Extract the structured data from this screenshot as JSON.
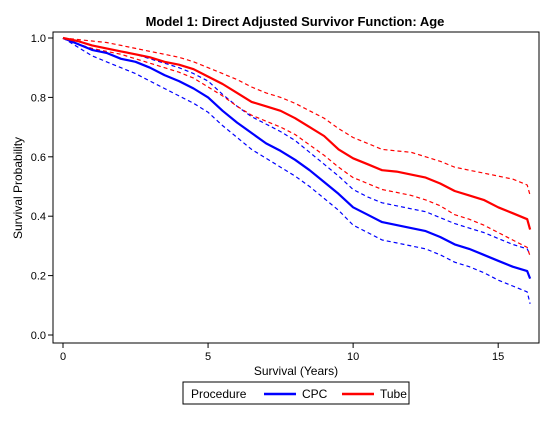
{
  "chart_data": {
    "type": "line",
    "title": "Model 1: Direct Adjusted Survivor Function: Age",
    "xlabel": "Survival (Years)",
    "ylabel": "Survival Probability",
    "xlim": [
      0,
      16.2
    ],
    "ylim": [
      0,
      1.0
    ],
    "xticks": [
      0,
      5,
      10,
      15
    ],
    "yticks": [
      0.0,
      0.2,
      0.4,
      0.6,
      0.8,
      1.0
    ],
    "xtick_labels": [
      "0",
      "5",
      "10",
      "15"
    ],
    "ytick_labels": [
      "0.0",
      "0.2",
      "0.4",
      "0.6",
      "0.8",
      "1.0"
    ],
    "grid": false,
    "legend": {
      "position": "bottom-center",
      "title": "Procedure",
      "entries": [
        "CPC",
        "Tube"
      ]
    },
    "series": [
      {
        "name": "CPC",
        "color": "#0000ff",
        "x": [
          0,
          0.5,
          1,
          1.5,
          2,
          2.5,
          3,
          3.5,
          4,
          4.5,
          5,
          5.5,
          6,
          6.5,
          7,
          7.5,
          8,
          8.5,
          9,
          9.5,
          10,
          10.5,
          11,
          11.5,
          12,
          12.5,
          13,
          13.5,
          14,
          14.5,
          15,
          15.5,
          16,
          16.1
        ],
        "y": [
          1.0,
          0.98,
          0.96,
          0.95,
          0.93,
          0.92,
          0.9,
          0.875,
          0.855,
          0.83,
          0.8,
          0.755,
          0.715,
          0.68,
          0.645,
          0.62,
          0.59,
          0.555,
          0.515,
          0.475,
          0.43,
          0.405,
          0.38,
          0.37,
          0.36,
          0.35,
          0.33,
          0.305,
          0.29,
          0.27,
          0.25,
          0.23,
          0.215,
          0.19
        ]
      },
      {
        "name": "Tube",
        "color": "#ff0000",
        "x": [
          0,
          0.5,
          1,
          1.5,
          2,
          2.5,
          3,
          3.5,
          4,
          4.5,
          5,
          5.5,
          6,
          6.5,
          7,
          7.5,
          8,
          8.5,
          9,
          9.5,
          10,
          10.5,
          11,
          11.5,
          12,
          12.5,
          13,
          13.5,
          14,
          14.5,
          15,
          15.5,
          16,
          16.1
        ],
        "y": [
          1.0,
          0.99,
          0.975,
          0.965,
          0.955,
          0.945,
          0.935,
          0.92,
          0.91,
          0.895,
          0.87,
          0.845,
          0.815,
          0.785,
          0.77,
          0.755,
          0.73,
          0.7,
          0.67,
          0.625,
          0.595,
          0.575,
          0.555,
          0.55,
          0.54,
          0.53,
          0.51,
          0.485,
          0.47,
          0.455,
          0.43,
          0.41,
          0.39,
          0.355
        ]
      },
      {
        "name": "",
        "color": "#0000ff",
        "dashed": true,
        "x": [
          0,
          0.5,
          1,
          1.5,
          2,
          2.5,
          3,
          3.5,
          4,
          4.5,
          5,
          5.5,
          6,
          6.5,
          7,
          7.5,
          8,
          8.5,
          9,
          9.5,
          10,
          10.5,
          11,
          11.5,
          12,
          12.5,
          13,
          13.5,
          14,
          14.5,
          15,
          15.5,
          16,
          16.1
        ],
        "y": [
          1.0,
          0.97,
          0.94,
          0.92,
          0.9,
          0.88,
          0.855,
          0.83,
          0.805,
          0.78,
          0.75,
          0.705,
          0.665,
          0.625,
          0.595,
          0.565,
          0.535,
          0.5,
          0.46,
          0.42,
          0.37,
          0.345,
          0.32,
          0.31,
          0.3,
          0.29,
          0.27,
          0.245,
          0.23,
          0.21,
          0.185,
          0.165,
          0.145,
          0.105
        ]
      },
      {
        "name": "",
        "color": "#0000ff",
        "dashed": true,
        "x": [
          0,
          0.5,
          1,
          1.5,
          2,
          2.5,
          3,
          3.5,
          4,
          4.5,
          5,
          5.5,
          6,
          6.5,
          7,
          7.5,
          8,
          8.5,
          9,
          9.5,
          10,
          10.5,
          11,
          11.5,
          12,
          12.5,
          13,
          13.5,
          14,
          14.5,
          15,
          15.5,
          16,
          16.1
        ],
        "y": [
          1.0,
          0.99,
          0.975,
          0.965,
          0.955,
          0.945,
          0.93,
          0.915,
          0.9,
          0.88,
          0.855,
          0.81,
          0.77,
          0.735,
          0.71,
          0.685,
          0.655,
          0.615,
          0.575,
          0.535,
          0.49,
          0.465,
          0.445,
          0.435,
          0.425,
          0.415,
          0.395,
          0.375,
          0.36,
          0.345,
          0.325,
          0.305,
          0.29,
          0.27
        ]
      },
      {
        "name": "",
        "color": "#ff0000",
        "dashed": true,
        "x": [
          0,
          0.5,
          1,
          1.5,
          2,
          2.5,
          3,
          3.5,
          4,
          4.5,
          5,
          5.5,
          6,
          6.5,
          7,
          7.5,
          8,
          8.5,
          9,
          9.5,
          10,
          10.5,
          11,
          11.5,
          12,
          12.5,
          13,
          13.5,
          14,
          14.5,
          15,
          15.5,
          16,
          16.1
        ],
        "y": [
          1.0,
          0.98,
          0.965,
          0.955,
          0.945,
          0.93,
          0.915,
          0.9,
          0.885,
          0.865,
          0.835,
          0.805,
          0.77,
          0.74,
          0.72,
          0.7,
          0.675,
          0.64,
          0.605,
          0.565,
          0.53,
          0.51,
          0.49,
          0.48,
          0.47,
          0.455,
          0.435,
          0.405,
          0.39,
          0.37,
          0.345,
          0.32,
          0.295,
          0.265
        ]
      },
      {
        "name": "",
        "color": "#ff0000",
        "dashed": true,
        "x": [
          0,
          0.5,
          1,
          1.5,
          2,
          2.5,
          3,
          3.5,
          4,
          4.5,
          5,
          5.5,
          6,
          6.5,
          7,
          7.5,
          8,
          8.5,
          9,
          9.5,
          10,
          10.5,
          11,
          11.5,
          12,
          12.5,
          13,
          13.5,
          14,
          14.5,
          15,
          15.5,
          16,
          16.1
        ],
        "y": [
          1.0,
          0.995,
          0.99,
          0.985,
          0.975,
          0.965,
          0.955,
          0.945,
          0.935,
          0.92,
          0.9,
          0.88,
          0.86,
          0.835,
          0.815,
          0.8,
          0.78,
          0.755,
          0.73,
          0.695,
          0.665,
          0.645,
          0.625,
          0.62,
          0.615,
          0.6,
          0.585,
          0.565,
          0.555,
          0.545,
          0.535,
          0.525,
          0.505,
          0.47
        ]
      }
    ]
  }
}
